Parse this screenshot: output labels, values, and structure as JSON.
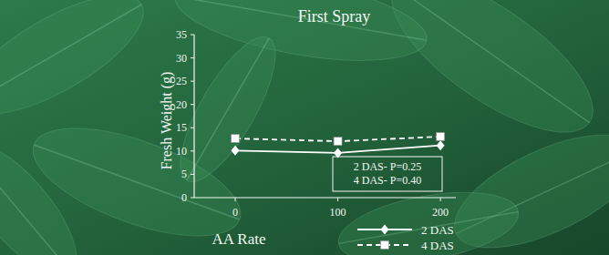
{
  "chart_data": {
    "type": "line",
    "title": "First Spray",
    "x_label": "AA Rate",
    "y_label": "Fresh Weight (g)",
    "x": [
      0,
      100,
      200
    ],
    "xlim": [
      -40,
      215
    ],
    "xticks": [
      0,
      100,
      200
    ],
    "ylim": [
      0,
      35
    ],
    "yticks": [
      0,
      5,
      10,
      15,
      20,
      25,
      30,
      35
    ],
    "series": [
      {
        "name": "2 DAS",
        "color": "#ffffff",
        "marker": "diamond",
        "line_style": "solid",
        "values": [
          10.1,
          9.6,
          11.2
        ]
      },
      {
        "name": "4 DAS",
        "color": "#ffffff",
        "marker": "square",
        "line_style": "dashed",
        "values": [
          12.7,
          12.1,
          13.1
        ]
      }
    ],
    "annotations": [
      "2 DAS- P=0.25",
      "4 DAS- P=0.40"
    ],
    "legend": "bottom",
    "grid": false
  }
}
